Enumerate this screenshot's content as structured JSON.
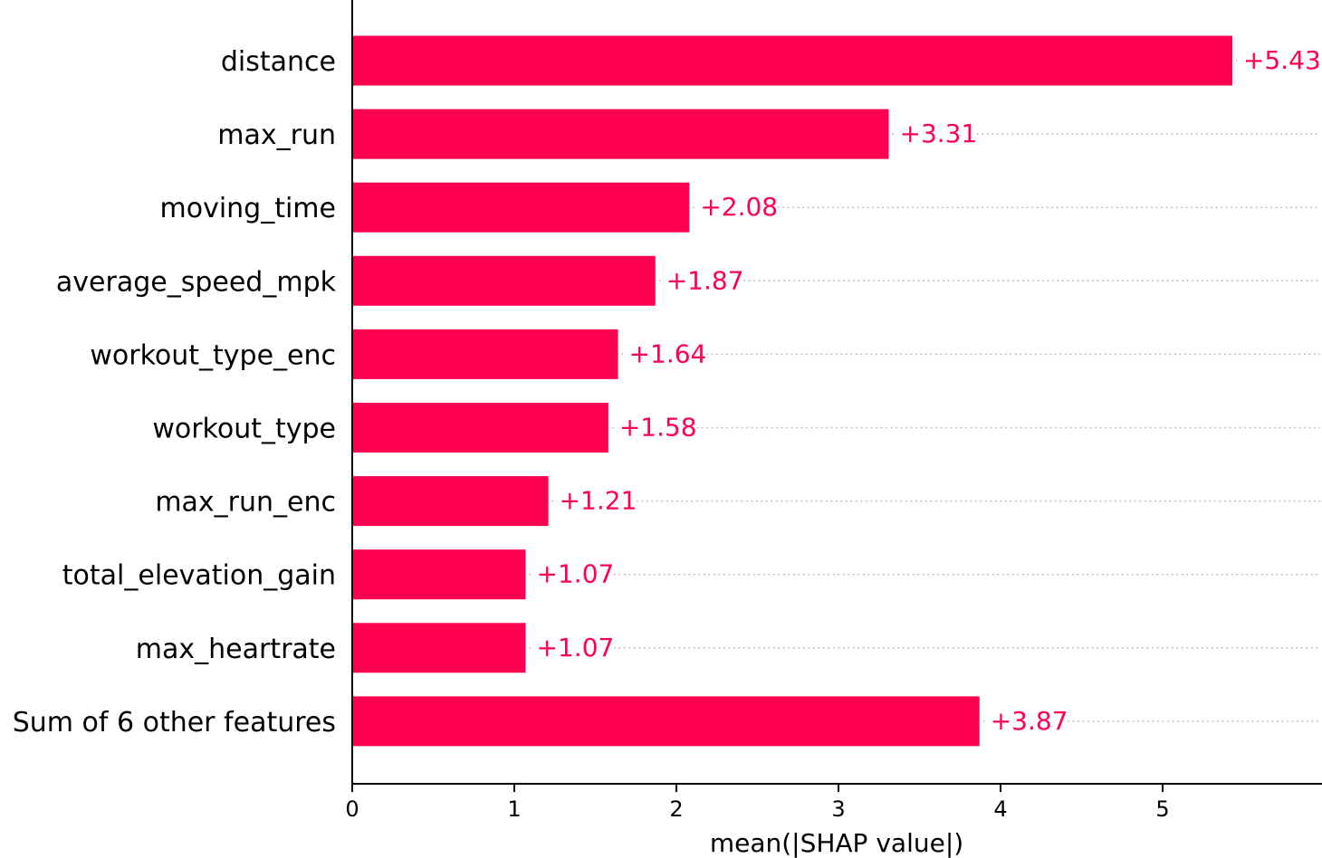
{
  "chart_data": {
    "type": "bar",
    "orientation": "horizontal",
    "categories": [
      "distance",
      "max_run",
      "moving_time",
      "average_speed_mpk",
      "workout_type_enc",
      "workout_type",
      "max_run_enc",
      "total_elevation_gain",
      "max_heartrate",
      "Sum of 6 other features"
    ],
    "values": [
      5.43,
      3.31,
      2.08,
      1.87,
      1.64,
      1.58,
      1.21,
      1.07,
      1.07,
      3.87
    ],
    "value_labels": [
      "+5.43",
      "+3.31",
      "+2.08",
      "+1.87",
      "+1.64",
      "+1.58",
      "+1.21",
      "+1.07",
      "+1.07",
      "+3.87"
    ],
    "xlabel": "mean(|SHAP value|)",
    "xticks": [
      "0",
      "1",
      "2",
      "3",
      "4",
      "5"
    ],
    "xlim": [
      0,
      5.97
    ],
    "bar_color": "#ff0051",
    "grid": false
  }
}
